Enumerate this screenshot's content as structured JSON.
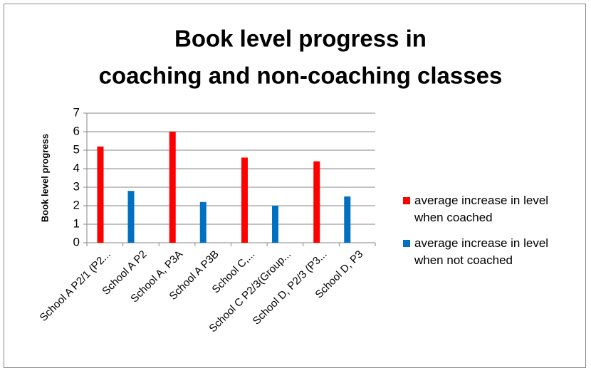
{
  "chart_data": {
    "type": "bar",
    "title": [
      "Book level progress in",
      "coaching and non-coaching classes"
    ],
    "y_label": "Book level progress",
    "categories": [
      "School A P2/1 (P2...",
      "School A P2",
      "School A, P3A",
      "School A P3B",
      "School C,...",
      "School C P2/3(Group...",
      "School D, P2/3 (P3...",
      "School D, P3"
    ],
    "series": [
      {
        "name": "average increase in level when coached",
        "color": "#ff0000",
        "values": [
          5.2,
          null,
          6,
          null,
          4.6,
          null,
          4.4,
          null
        ]
      },
      {
        "name": "average increase in level when not coached",
        "color": "#0070c0",
        "values": [
          null,
          2.8,
          null,
          2.2,
          null,
          2.0,
          null,
          2.5
        ]
      }
    ],
    "ylim": [
      0,
      7
    ],
    "yticks": [
      0,
      1,
      2,
      3,
      4,
      5,
      6,
      7
    ],
    "grid": true,
    "legend": "right"
  }
}
